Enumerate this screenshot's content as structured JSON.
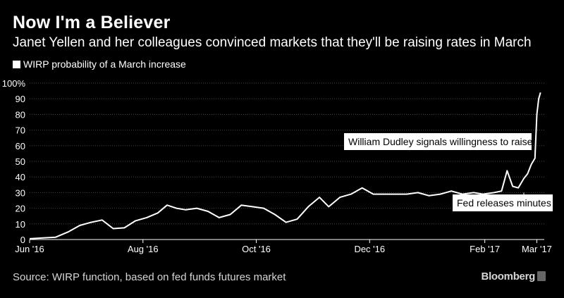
{
  "chart_data": {
    "type": "line",
    "title": "Now I'm a Believer",
    "subtitle": "Janet Yellen and her colleagues convinced markets that they'll be raising rates in March",
    "series": [
      {
        "name": "WIRP probability of a March increase",
        "color": "#ffffff",
        "x": [
          "2016-06-01",
          "2016-06-08",
          "2016-06-15",
          "2016-06-22",
          "2016-06-28",
          "2016-07-04",
          "2016-07-10",
          "2016-07-16",
          "2016-07-22",
          "2016-07-28",
          "2016-08-03",
          "2016-08-09",
          "2016-08-14",
          "2016-08-19",
          "2016-08-24",
          "2016-08-30",
          "2016-09-05",
          "2016-09-11",
          "2016-09-17",
          "2016-09-23",
          "2016-09-29",
          "2016-10-05",
          "2016-10-11",
          "2016-10-17",
          "2016-10-23",
          "2016-10-29",
          "2016-11-04",
          "2016-11-09",
          "2016-11-15",
          "2016-11-21",
          "2016-11-27",
          "2016-12-03",
          "2016-12-09",
          "2016-12-15",
          "2016-12-21",
          "2016-12-27",
          "2017-01-02",
          "2017-01-08",
          "2017-01-14",
          "2017-01-20",
          "2017-01-26",
          "2017-01-31",
          "2017-02-06",
          "2017-02-10",
          "2017-02-13",
          "2017-02-16",
          "2017-02-19",
          "2017-02-22",
          "2017-02-24",
          "2017-02-26",
          "2017-02-28",
          "2017-03-01",
          "2017-03-02",
          "2017-03-03"
        ],
        "values": [
          0.5,
          1,
          1.5,
          5,
          9,
          11,
          12.5,
          7,
          7.5,
          12,
          14,
          17,
          22,
          20,
          19,
          20,
          18,
          14,
          16,
          22,
          21,
          20,
          16,
          11,
          13,
          21,
          27,
          21,
          27,
          29,
          33,
          29,
          29,
          29,
          29,
          30,
          28,
          29,
          31,
          29,
          30,
          29,
          30,
          31,
          44,
          34,
          33,
          39,
          42,
          48,
          52,
          80,
          90,
          94
        ]
      }
    ],
    "x_ticks": [
      "Jun '16",
      "Aug '16",
      "Oct '16",
      "Dec '16",
      "Feb '17",
      "Mar '17"
    ],
    "x_tick_dates": [
      "2016-06-01",
      "2016-08-01",
      "2016-10-01",
      "2016-12-01",
      "2017-02-01",
      "2017-03-01"
    ],
    "x_range": [
      "2016-06-01",
      "2017-03-05"
    ],
    "y_ticks": [
      "0",
      "10",
      "20",
      "30",
      "40",
      "50",
      "60",
      "70",
      "80",
      "90",
      "100%"
    ],
    "y_range": [
      0,
      100
    ],
    "grid": true,
    "legend_position": "top-left",
    "annotations": [
      {
        "text": "William Dudley signals willingness to raise",
        "x": "2017-02-28",
        "y": 52
      },
      {
        "text": "Fed releases minutes",
        "x": "2017-02-22",
        "y": 30
      }
    ]
  },
  "footer": {
    "source": "Source: WIRP function, based on fed funds futures market",
    "brand": "Bloomberg"
  }
}
